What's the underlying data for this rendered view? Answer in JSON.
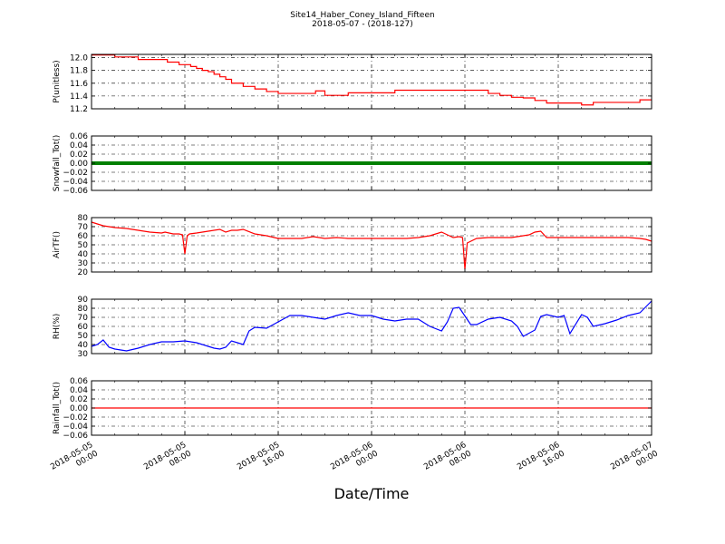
{
  "title_line1": "Site14_Haber_Coney_Island_Fifteen",
  "title_line2": "2018-05-07 - (2018-127)",
  "x_axis_title": "Date/Time",
  "x_tick_labels": [
    [
      "2018-05-05",
      "00:00"
    ],
    [
      "2018-05-05",
      "08:00"
    ],
    [
      "2018-05-05",
      "16:00"
    ],
    [
      "2018-05-06",
      "00:00"
    ],
    [
      "2018-05-06",
      "08:00"
    ],
    [
      "2018-05-06",
      "16:00"
    ],
    [
      "2018-05-07",
      "00:00"
    ]
  ],
  "chart_data": [
    {
      "type": "line",
      "ylabel": "P(unitless)",
      "ylim": [
        11.2,
        12.05
      ],
      "yticks": [
        "11.2",
        "11.4",
        "11.6",
        "11.8",
        "12.0"
      ],
      "ytick_values": [
        11.2,
        11.4,
        11.6,
        11.8,
        12.0
      ],
      "color": "#ff0000",
      "step": true,
      "x_hours": [
        0,
        2,
        3,
        4,
        5,
        6,
        6.5,
        7,
        7.5,
        8,
        8.5,
        9,
        9.5,
        10,
        10.5,
        11,
        11.5,
        12,
        13,
        14,
        15,
        16,
        17,
        18,
        19,
        19.2,
        20,
        21,
        22,
        23,
        24,
        25,
        26,
        27,
        28,
        29,
        30,
        31,
        32,
        33,
        34,
        35,
        36,
        37,
        38,
        39,
        40,
        41,
        42,
        43,
        44,
        45,
        46,
        47,
        47.5,
        48
      ],
      "values": [
        12.04,
        12.01,
        12.01,
        11.97,
        11.97,
        11.97,
        11.93,
        11.93,
        11.89,
        11.89,
        11.86,
        11.83,
        11.8,
        11.78,
        11.74,
        11.7,
        11.66,
        11.6,
        11.55,
        11.51,
        11.47,
        11.44,
        11.44,
        11.44,
        11.44,
        11.48,
        11.41,
        11.41,
        11.45,
        11.45,
        11.45,
        11.45,
        11.49,
        11.49,
        11.49,
        11.49,
        11.49,
        11.49,
        11.49,
        11.49,
        11.44,
        11.41,
        11.38,
        11.37,
        11.33,
        11.29,
        11.29,
        11.29,
        11.26,
        11.3,
        11.3,
        11.3,
        11.3,
        11.34,
        11.34,
        11.34
      ]
    },
    {
      "type": "scatter",
      "ylabel": "Snowfall_Tot()",
      "ylim": [
        -0.06,
        0.06
      ],
      "yticks": [
        "−0.06",
        "−0.04",
        "−0.02",
        "0.00",
        "0.02",
        "0.04",
        "0.06"
      ],
      "ytick_values": [
        -0.06,
        -0.04,
        -0.02,
        0.0,
        0.02,
        0.04,
        0.06
      ],
      "color": "#008000",
      "constant_value": 0.0,
      "note_markers": "dense markers at every sample"
    },
    {
      "type": "line",
      "ylabel": "AirTF()",
      "ylim": [
        20,
        80
      ],
      "yticks": [
        "20",
        "30",
        "40",
        "50",
        "60",
        "70",
        "80"
      ],
      "ytick_values": [
        20,
        30,
        40,
        50,
        60,
        70,
        80
      ],
      "color": "#ff0000",
      "x_hours": [
        0,
        0.5,
        1,
        2,
        3,
        4,
        5,
        6,
        6.3,
        7,
        7.5,
        7.8,
        8.0,
        8.2,
        8.4,
        9,
        10,
        11,
        11.5,
        12,
        12.5,
        13,
        14,
        14.5,
        15,
        16,
        17,
        18,
        19,
        20,
        21,
        22,
        23,
        24,
        25,
        26,
        27,
        28,
        29,
        30,
        30.5,
        31,
        31.5,
        31.8,
        32.0,
        32.2,
        33,
        34,
        35,
        36,
        37,
        37.5,
        38,
        38.5,
        39,
        40,
        41,
        42,
        43,
        44,
        45,
        46,
        47,
        47.5,
        48
      ],
      "values": [
        75,
        73,
        71,
        69,
        68,
        66,
        64,
        63,
        64,
        62,
        62,
        61,
        40,
        60,
        62,
        63,
        65,
        67,
        64,
        66,
        66,
        67,
        62,
        61,
        60,
        57,
        57,
        57,
        59,
        57,
        58,
        57,
        57,
        57,
        57,
        57,
        57,
        58,
        60,
        64,
        61,
        58,
        59,
        58,
        23,
        52,
        57,
        58,
        58,
        58,
        60,
        61,
        64,
        65,
        58,
        58,
        58,
        58,
        58,
        58,
        58,
        58,
        57,
        56,
        54
      ]
    },
    {
      "type": "line",
      "ylabel": "RH(%)",
      "ylim": [
        30,
        90
      ],
      "yticks": [
        "30",
        "40",
        "50",
        "60",
        "70",
        "80",
        "90"
      ],
      "ytick_values": [
        30,
        40,
        50,
        60,
        70,
        80,
        90
      ],
      "color": "#0000ff",
      "x_hours": [
        0,
        0.5,
        1,
        1.5,
        2,
        2.5,
        3,
        4,
        5,
        6,
        7,
        8,
        9,
        10,
        10.5,
        11,
        11.5,
        12,
        12.5,
        13,
        13.5,
        14,
        15,
        16,
        17,
        18,
        19,
        20,
        21,
        22,
        23,
        24,
        25,
        26,
        27,
        28,
        29,
        30,
        30.5,
        31,
        31.5,
        32.5,
        33,
        34,
        35,
        36,
        36.5,
        37,
        38,
        38.5,
        39,
        40,
        40.5,
        41,
        42,
        42.5,
        43,
        44,
        45,
        46,
        47,
        48
      ],
      "values": [
        38,
        40,
        45,
        37,
        35,
        34,
        33,
        36,
        40,
        43,
        43,
        44,
        42,
        38,
        36,
        35,
        37,
        44,
        42,
        40,
        55,
        59,
        58,
        65,
        72,
        72,
        70,
        68,
        72,
        75,
        72,
        72,
        68,
        66,
        68,
        68,
        60,
        55,
        65,
        80,
        81,
        62,
        62,
        68,
        70,
        66,
        60,
        49,
        56,
        71,
        73,
        70,
        72,
        52,
        73,
        70,
        60,
        63,
        67,
        72,
        75,
        88
      ]
    },
    {
      "type": "line",
      "ylabel": "Rainfall_Tot()",
      "ylim": [
        -0.06,
        0.06
      ],
      "yticks": [
        "−0.06",
        "−0.04",
        "−0.02",
        "0.00",
        "0.02",
        "0.04",
        "0.06"
      ],
      "ytick_values": [
        -0.06,
        -0.04,
        -0.02,
        0.0,
        0.02,
        0.04,
        0.06
      ],
      "color": "#ff0000",
      "constant_value": 0.0
    }
  ]
}
